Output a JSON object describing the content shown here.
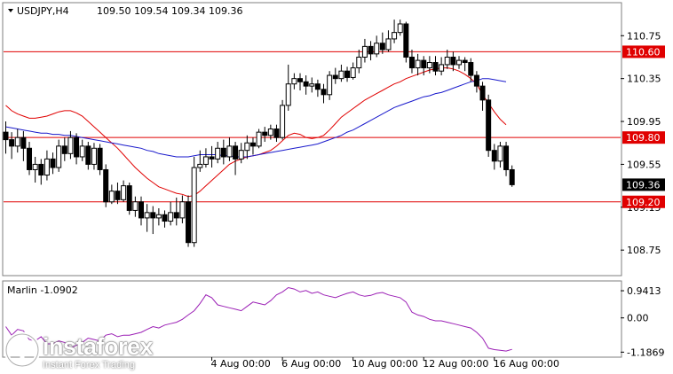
{
  "header": {
    "symbol": "USDJPY,H4",
    "ohlc": "109.50 109.54 109.34 109.36"
  },
  "watermark": {
    "name": "instaforex",
    "tagline": "Instant Forex Trading"
  },
  "colors": {
    "background": "#ffffff",
    "bull": "#ffffff",
    "bear": "#000000",
    "level_line": "#e00000",
    "ma_fast": "#e00000",
    "ma_slow": "#1a1acc",
    "indicator": "#9b1fb5",
    "label_red": "#e00000"
  },
  "chart_data": [
    {
      "type": "candlestick",
      "title": "USDJPY,H4",
      "y_axis_ticks": [
        "110.75",
        "110.35",
        "109.95",
        "109.55",
        "109.15",
        "108.75"
      ],
      "y_tick_values": [
        110.75,
        110.35,
        109.95,
        109.55,
        109.15,
        108.75
      ],
      "ylim": [
        108.52,
        111.05
      ],
      "x_tick_labels": [
        "4 Aug 00:00",
        "6 Aug 00:00",
        "10 Aug 00:00",
        "12 Aug 00:00",
        "16 Aug 00:00"
      ],
      "x_tick_candle_index": [
        35,
        47,
        59,
        71,
        83
      ],
      "current_price": "109.36",
      "levels": [
        {
          "value": 110.6,
          "label": "110.60"
        },
        {
          "value": 109.8,
          "label": "109.80"
        },
        {
          "value": 109.2,
          "label": "109.20"
        }
      ],
      "candles": [
        [
          109.85,
          109.78,
          109.95,
          109.65
        ],
        [
          109.78,
          109.72,
          109.85,
          109.6
        ],
        [
          109.72,
          109.8,
          109.88,
          109.66
        ],
        [
          109.8,
          109.7,
          109.86,
          109.58
        ],
        [
          109.7,
          109.5,
          109.76,
          109.45
        ],
        [
          109.5,
          109.55,
          109.62,
          109.38
        ],
        [
          109.55,
          109.45,
          109.6,
          109.36
        ],
        [
          109.45,
          109.6,
          109.68,
          109.4
        ],
        [
          109.6,
          109.52,
          109.66,
          109.46
        ],
        [
          109.52,
          109.72,
          109.78,
          109.48
        ],
        [
          109.72,
          109.65,
          109.8,
          109.58
        ],
        [
          109.65,
          109.8,
          109.86,
          109.6
        ],
        [
          109.8,
          109.62,
          109.84,
          109.55
        ],
        [
          109.62,
          109.72,
          109.78,
          109.58
        ],
        [
          109.72,
          109.55,
          109.76,
          109.5
        ],
        [
          109.55,
          109.7,
          109.75,
          109.5
        ],
        [
          109.7,
          109.5,
          109.74,
          109.45
        ],
        [
          109.5,
          109.2,
          109.55,
          109.15
        ],
        [
          109.2,
          109.3,
          109.36,
          109.18
        ],
        [
          109.3,
          109.22,
          109.38,
          109.18
        ],
        [
          109.22,
          109.35,
          109.4,
          109.2
        ],
        [
          109.35,
          109.12,
          109.38,
          109.08
        ],
        [
          109.12,
          109.2,
          109.25,
          109.06
        ],
        [
          109.2,
          109.05,
          109.25,
          108.98
        ],
        [
          109.05,
          109.1,
          109.18,
          108.92
        ],
        [
          109.1,
          109.05,
          109.16,
          108.9
        ],
        [
          109.05,
          109.08,
          109.14,
          108.98
        ],
        [
          109.08,
          109.02,
          109.12,
          108.96
        ],
        [
          109.02,
          109.1,
          109.2,
          108.98
        ],
        [
          109.1,
          109.05,
          109.24,
          108.98
        ],
        [
          109.05,
          109.2,
          109.26,
          109.0
        ],
        [
          109.2,
          108.82,
          109.26,
          108.78
        ],
        [
          108.82,
          109.52,
          109.62,
          108.78
        ],
        [
          109.52,
          109.55,
          109.68,
          109.48
        ],
        [
          109.55,
          109.62,
          109.7,
          109.52
        ],
        [
          109.62,
          109.6,
          109.72,
          109.52
        ],
        [
          109.6,
          109.7,
          109.76,
          109.56
        ],
        [
          109.7,
          109.62,
          109.78,
          109.55
        ],
        [
          109.62,
          109.72,
          109.8,
          109.58
        ],
        [
          109.72,
          109.6,
          109.76,
          109.45
        ],
        [
          109.6,
          109.68,
          109.75,
          109.56
        ],
        [
          109.68,
          109.75,
          109.82,
          109.6
        ],
        [
          109.75,
          109.72,
          109.8,
          109.64
        ],
        [
          109.72,
          109.85,
          109.88,
          109.7
        ],
        [
          109.85,
          109.82,
          109.9,
          109.76
        ],
        [
          109.82,
          109.88,
          109.92,
          109.78
        ],
        [
          109.88,
          109.8,
          109.92,
          109.76
        ],
        [
          109.8,
          110.1,
          110.15,
          109.78
        ],
        [
          110.1,
          110.3,
          110.48,
          110.05
        ],
        [
          110.3,
          110.35,
          110.4,
          110.25
        ],
        [
          110.35,
          110.32,
          110.4,
          110.24
        ],
        [
          110.32,
          110.28,
          110.38,
          110.2
        ],
        [
          110.28,
          110.3,
          110.36,
          110.22
        ],
        [
          110.3,
          110.25,
          110.34,
          110.18
        ],
        [
          110.25,
          110.2,
          110.3,
          110.12
        ],
        [
          110.2,
          110.38,
          110.42,
          110.15
        ],
        [
          110.38,
          110.35,
          110.45,
          110.3
        ],
        [
          110.35,
          110.42,
          110.48,
          110.32
        ],
        [
          110.42,
          110.36,
          110.46,
          110.32
        ],
        [
          110.36,
          110.45,
          110.5,
          110.34
        ],
        [
          110.45,
          110.55,
          110.62,
          110.4
        ],
        [
          110.55,
          110.65,
          110.72,
          110.5
        ],
        [
          110.65,
          110.58,
          110.7,
          110.52
        ],
        [
          110.58,
          110.68,
          110.75,
          110.55
        ],
        [
          110.68,
          110.62,
          110.78,
          110.58
        ],
        [
          110.62,
          110.72,
          110.8,
          110.6
        ],
        [
          110.72,
          110.78,
          110.9,
          110.68
        ],
        [
          110.78,
          110.86,
          110.9,
          110.75
        ],
        [
          110.86,
          110.55,
          110.88,
          110.5
        ],
        [
          110.55,
          110.45,
          110.62,
          110.4
        ],
        [
          110.45,
          110.52,
          110.58,
          110.38
        ],
        [
          110.52,
          110.45,
          110.56,
          110.38
        ],
        [
          110.45,
          110.5,
          110.56,
          110.4
        ],
        [
          110.5,
          110.42,
          110.56,
          110.38
        ],
        [
          110.42,
          110.48,
          110.55,
          110.38
        ],
        [
          110.48,
          110.55,
          110.62,
          110.44
        ],
        [
          110.55,
          110.48,
          110.6,
          110.42
        ],
        [
          110.48,
          110.52,
          110.56,
          110.44
        ],
        [
          110.52,
          110.5,
          110.55,
          110.42
        ],
        [
          110.5,
          110.38,
          110.54,
          110.32
        ],
        [
          110.38,
          110.28,
          110.42,
          110.22
        ],
        [
          110.28,
          110.15,
          110.32,
          110.05
        ],
        [
          110.15,
          109.68,
          110.2,
          109.62
        ],
        [
          109.68,
          109.58,
          109.74,
          109.5
        ],
        [
          109.58,
          109.72,
          109.76,
          109.52
        ],
        [
          109.72,
          109.5,
          109.76,
          109.44
        ],
        [
          109.5,
          109.36,
          109.54,
          109.34
        ]
      ],
      "ma_fast": [
        110.1,
        110.05,
        110.02,
        110.0,
        109.98,
        109.98,
        109.99,
        110.0,
        110.02,
        110.04,
        110.05,
        110.05,
        110.03,
        110.0,
        109.95,
        109.9,
        109.85,
        109.8,
        109.75,
        109.7,
        109.64,
        109.58,
        109.52,
        109.47,
        109.42,
        109.38,
        109.34,
        109.32,
        109.3,
        109.28,
        109.27,
        109.25,
        109.26,
        109.3,
        109.35,
        109.4,
        109.45,
        109.5,
        109.55,
        109.58,
        109.6,
        109.62,
        109.63,
        109.64,
        109.66,
        109.68,
        109.72,
        109.77,
        109.82,
        109.84,
        109.83,
        109.8,
        109.79,
        109.8,
        109.82,
        109.87,
        109.93,
        109.99,
        110.03,
        110.07,
        110.11,
        110.15,
        110.18,
        110.21,
        110.24,
        110.27,
        110.3,
        110.32,
        110.35,
        110.37,
        110.39,
        110.41,
        110.43,
        110.44,
        110.45,
        110.45,
        110.44,
        110.42,
        110.39,
        110.35,
        110.3,
        110.2,
        110.12,
        110.04,
        109.97,
        109.92
      ],
      "ma_slow": [
        109.9,
        109.89,
        109.88,
        109.87,
        109.86,
        109.85,
        109.84,
        109.84,
        109.83,
        109.83,
        109.82,
        109.82,
        109.81,
        109.8,
        109.79,
        109.78,
        109.77,
        109.76,
        109.75,
        109.74,
        109.73,
        109.72,
        109.71,
        109.7,
        109.68,
        109.67,
        109.65,
        109.64,
        109.63,
        109.62,
        109.62,
        109.62,
        109.63,
        109.64,
        109.64,
        109.64,
        109.64,
        109.63,
        109.63,
        109.62,
        109.62,
        109.62,
        109.63,
        109.64,
        109.65,
        109.66,
        109.67,
        109.68,
        109.69,
        109.7,
        109.71,
        109.72,
        109.73,
        109.74,
        109.76,
        109.78,
        109.8,
        109.82,
        109.85,
        109.87,
        109.9,
        109.93,
        109.96,
        109.99,
        110.02,
        110.05,
        110.08,
        110.1,
        110.12,
        110.14,
        110.16,
        110.18,
        110.19,
        110.21,
        110.22,
        110.24,
        110.26,
        110.28,
        110.3,
        110.32,
        110.33,
        110.35,
        110.35,
        110.34,
        110.33,
        110.32
      ],
      "ma_start_index": 0
    },
    {
      "type": "line",
      "title": "Marlin -1.0902",
      "y_axis_ticks": [
        "0.9413",
        "0.00",
        "-1.1869"
      ],
      "y_tick_values": [
        0.9413,
        0.0,
        -1.1869
      ],
      "ylim": [
        -1.33,
        1.25
      ],
      "series": [
        {
          "values": [
            -0.3,
            -0.6,
            -0.4,
            -0.45,
            -0.75,
            -0.8,
            -0.65,
            -0.9,
            -0.9,
            -0.8,
            -0.85,
            -1.05,
            -0.95,
            -0.85,
            -0.7,
            -0.75,
            -0.8,
            -0.6,
            -0.55,
            -0.65,
            -0.6,
            -0.6,
            -0.55,
            -0.5,
            -0.4,
            -0.3,
            -0.35,
            -0.25,
            -0.2,
            -0.15,
            -0.05,
            0.1,
            0.25,
            0.5,
            0.8,
            0.7,
            0.45,
            0.4,
            0.35,
            0.3,
            0.25,
            0.4,
            0.55,
            0.5,
            0.45,
            0.6,
            0.8,
            0.9,
            1.05,
            1.0,
            0.9,
            0.95,
            0.85,
            0.9,
            0.8,
            0.75,
            0.7,
            0.78,
            0.85,
            0.9,
            0.8,
            0.75,
            0.78,
            0.85,
            0.88,
            0.8,
            0.75,
            0.7,
            0.55,
            0.2,
            0.1,
            0.05,
            -0.05,
            -0.1,
            -0.1,
            -0.15,
            -0.2,
            -0.25,
            -0.3,
            -0.35,
            -0.5,
            -0.7,
            -1.05,
            -1.1,
            -1.12,
            -1.15,
            -1.09
          ]
        }
      ]
    }
  ]
}
